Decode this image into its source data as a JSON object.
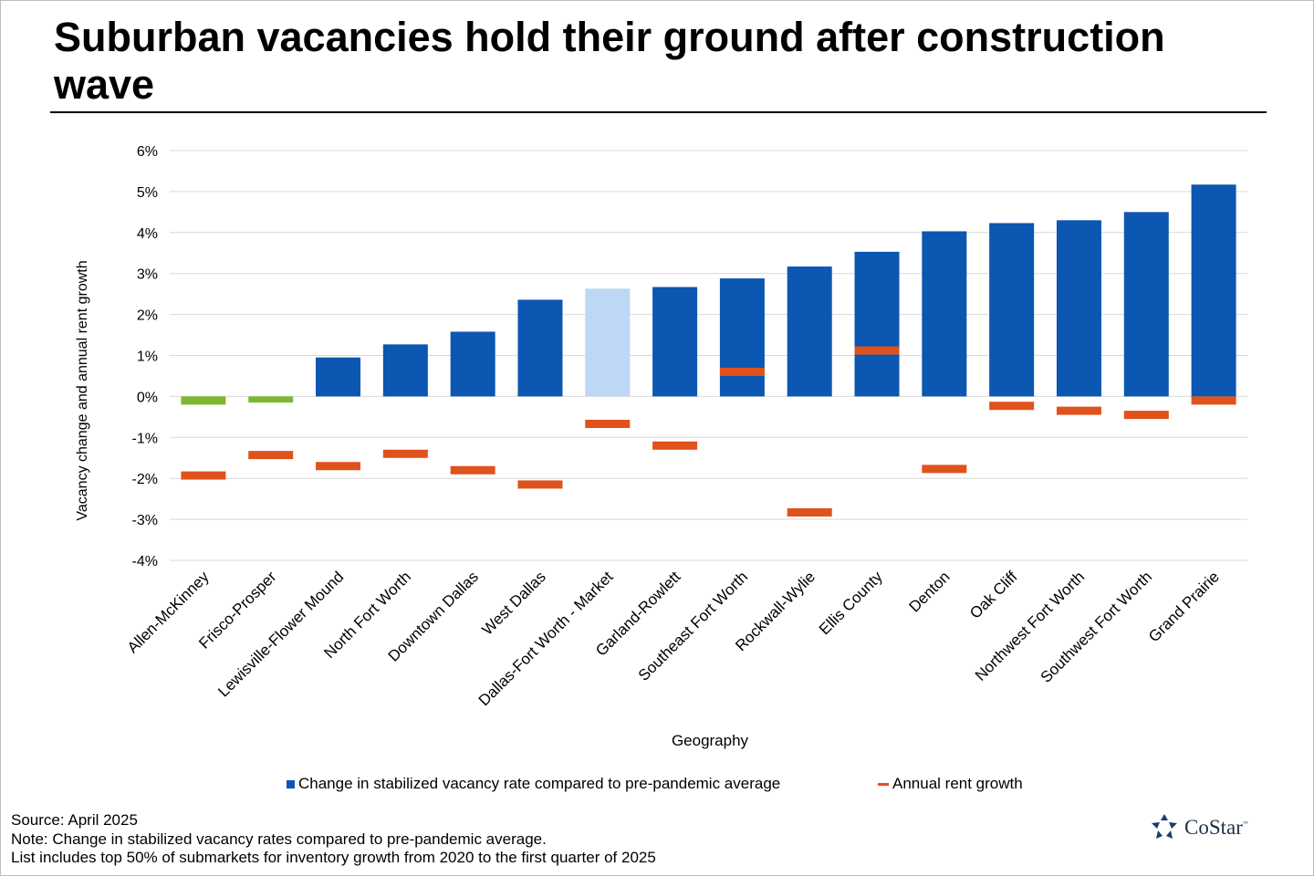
{
  "title": "Suburban vacancies hold their ground after construction wave",
  "legend": {
    "bar_label": "Change in stabilized vacancy rate compared to pre-pandemic average",
    "marker_label": "Annual rent growth"
  },
  "footnotes": [
    "Source: April 2025",
    "Note: Change in stabilized vacancy rates compared to pre-pandemic average.",
    "List includes top 50% of submarkets for inventory growth from 2020 to the first quarter of 2025"
  ],
  "logo": {
    "text": "CoStar",
    "tm": "™",
    "icon": "costar-star-logo"
  },
  "colors": {
    "bar": "#0b57b2",
    "bar_market": "#bdd7f4",
    "bar_negative": "#7cb82f",
    "rent_marker": "#e0521c",
    "grid": "#d9d9d9"
  },
  "chart_data": {
    "type": "bar",
    "title": "",
    "xlabel": "Geography",
    "ylabel": "Vacancy change and annual rent growth",
    "ylim": [
      -4,
      6
    ],
    "yticks": [
      -4,
      -3,
      -2,
      -1,
      0,
      1,
      2,
      3,
      4,
      5,
      6
    ],
    "ytick_labels": [
      "-4%",
      "-3%",
      "-2%",
      "-1%",
      "0%",
      "1%",
      "2%",
      "3%",
      "4%",
      "5%",
      "6%"
    ],
    "grid": true,
    "legend_position": "bottom",
    "categories": [
      "Allen-McKinney",
      "Frisco-Prosper",
      "Lewisville-Flower Mound",
      "North Fort Worth",
      "Downtown Dallas",
      "West Dallas",
      "Dallas-Fort Worth - Market",
      "Garland-Rowlett",
      "Southeast Fort Worth",
      "Rockwall-Wylie",
      "Ellis County",
      "Denton",
      "Oak Cliff",
      "Northwest Fort Worth",
      "Southwest Fort Worth",
      "Grand Prairie"
    ],
    "series": [
      {
        "name": "Change in stabilized vacancy rate compared to pre-pandemic average",
        "type": "bar",
        "values": [
          -0.2,
          -0.15,
          0.95,
          1.27,
          1.58,
          2.36,
          2.63,
          2.67,
          2.88,
          3.17,
          3.53,
          4.03,
          4.23,
          4.3,
          4.5,
          5.17
        ]
      },
      {
        "name": "Annual rent growth",
        "type": "marker",
        "values": [
          -1.93,
          -1.43,
          -1.7,
          -1.4,
          -1.8,
          -2.15,
          -0.67,
          -1.2,
          0.6,
          -2.83,
          1.12,
          -1.77,
          -0.23,
          -0.35,
          -0.45,
          -0.1
        ]
      }
    ]
  }
}
